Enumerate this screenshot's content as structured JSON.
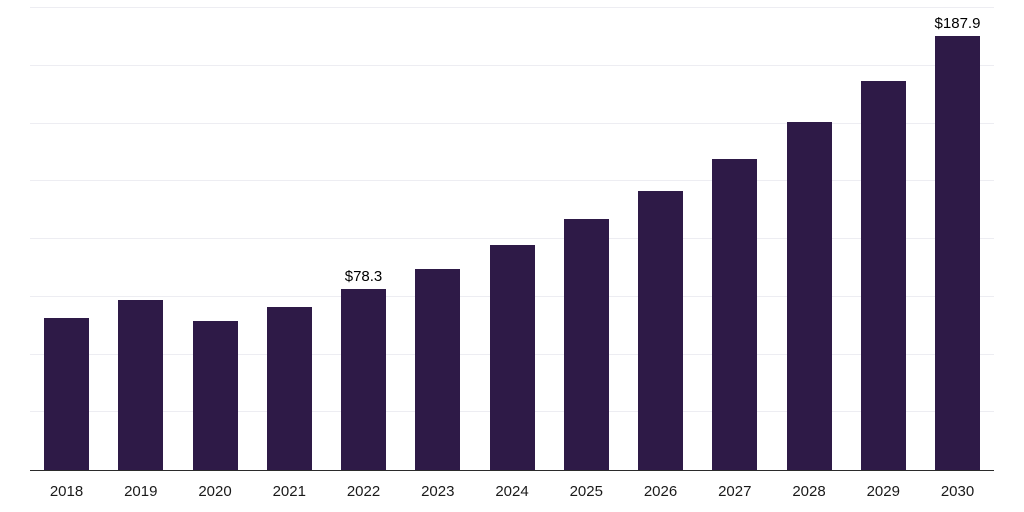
{
  "chart_data": {
    "type": "bar",
    "title": "",
    "xlabel": "",
    "ylabel": "",
    "categories": [
      "2018",
      "2019",
      "2020",
      "2021",
      "2022",
      "2023",
      "2024",
      "2025",
      "2026",
      "2027",
      "2028",
      "2029",
      "2030"
    ],
    "values": [
      66.0,
      73.5,
      64.5,
      70.5,
      78.3,
      87.0,
      97.5,
      108.5,
      121.0,
      134.5,
      150.5,
      168.5,
      187.9
    ],
    "data_labels": {
      "2022": "$78.3",
      "2030": "$187.9"
    },
    "ylim": [
      0,
      200
    ],
    "gridline_step": 25,
    "grid": true,
    "legend": "none",
    "bar_color": "#2E1A47",
    "gridline_color": "#EDEDF2",
    "axis_line_color": "#2B2B2B",
    "tick_label_color": "#1A1A1A"
  }
}
